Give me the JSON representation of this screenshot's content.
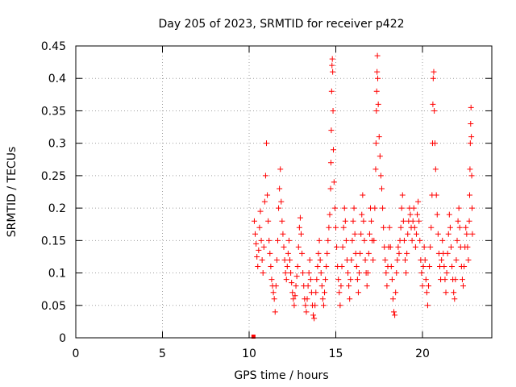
{
  "chart_data": {
    "type": "scatter",
    "title": "Day 205 of 2023, SRMTID for receiver p422",
    "xlabel": "GPS time / hours",
    "ylabel": "SRMTID / TECUs",
    "xlim": [
      0,
      24
    ],
    "ylim": [
      0,
      0.45
    ],
    "x_ticks": [
      0,
      5,
      10,
      15,
      20
    ],
    "x_tick_labels": [
      "0",
      "5",
      "10",
      "15",
      "20"
    ],
    "y_ticks": [
      0,
      0.05,
      0.1,
      0.15,
      0.2,
      0.25,
      0.3,
      0.35,
      0.4,
      0.45
    ],
    "y_tick_labels": [
      "0",
      "0.05",
      "0.1",
      "0.15",
      "0.2",
      "0.25",
      "0.3",
      "0.35",
      "0.4",
      "0.45"
    ],
    "grid": true,
    "marker": "+",
    "series_color": "#ff0000",
    "zero_marker": {
      "x": 10.25,
      "y": 0
    },
    "series": [
      {
        "name": "SRMTID",
        "points": [
          [
            10.3,
            0.18
          ],
          [
            10.35,
            0.16
          ],
          [
            10.4,
            0.145
          ],
          [
            10.45,
            0.125
          ],
          [
            10.5,
            0.11
          ],
          [
            10.55,
            0.135
          ],
          [
            10.6,
            0.17
          ],
          [
            10.65,
            0.195
          ],
          [
            10.7,
            0.15
          ],
          [
            10.75,
            0.12
          ],
          [
            10.8,
            0.1
          ],
          [
            10.85,
            0.14
          ],
          [
            10.9,
            0.21
          ],
          [
            10.95,
            0.25
          ],
          [
            11.0,
            0.3
          ],
          [
            11.05,
            0.22
          ],
          [
            11.1,
            0.18
          ],
          [
            11.15,
            0.15
          ],
          [
            11.2,
            0.13
          ],
          [
            11.25,
            0.11
          ],
          [
            11.3,
            0.09
          ],
          [
            11.35,
            0.08
          ],
          [
            11.4,
            0.07
          ],
          [
            11.45,
            0.06
          ],
          [
            11.5,
            0.04
          ],
          [
            11.55,
            0.08
          ],
          [
            11.6,
            0.12
          ],
          [
            11.65,
            0.15
          ],
          [
            11.7,
            0.2
          ],
          [
            11.75,
            0.23
          ],
          [
            11.8,
            0.26
          ],
          [
            11.85,
            0.21
          ],
          [
            11.9,
            0.18
          ],
          [
            11.95,
            0.16
          ],
          [
            12.0,
            0.14
          ],
          [
            12.05,
            0.12
          ],
          [
            12.1,
            0.1
          ],
          [
            12.15,
            0.09
          ],
          [
            12.2,
            0.11
          ],
          [
            12.25,
            0.13
          ],
          [
            12.3,
            0.15
          ],
          [
            12.35,
            0.12
          ],
          [
            12.4,
            0.1
          ],
          [
            12.45,
            0.085
          ],
          [
            12.5,
            0.07
          ],
          [
            12.55,
            0.06
          ],
          [
            12.6,
            0.05
          ],
          [
            12.65,
            0.065
          ],
          [
            12.7,
            0.08
          ],
          [
            12.75,
            0.095
          ],
          [
            12.8,
            0.11
          ],
          [
            12.85,
            0.14
          ],
          [
            12.9,
            0.17
          ],
          [
            12.95,
            0.185
          ],
          [
            13.0,
            0.16
          ],
          [
            13.05,
            0.13
          ],
          [
            13.1,
            0.1
          ],
          [
            13.15,
            0.08
          ],
          [
            13.2,
            0.06
          ],
          [
            13.25,
            0.05
          ],
          [
            13.3,
            0.04
          ],
          [
            13.35,
            0.06
          ],
          [
            13.4,
            0.08
          ],
          [
            13.45,
            0.1
          ],
          [
            13.5,
            0.12
          ],
          [
            13.55,
            0.09
          ],
          [
            13.6,
            0.07
          ],
          [
            13.65,
            0.05
          ],
          [
            13.7,
            0.035
          ],
          [
            13.75,
            0.03
          ],
          [
            13.8,
            0.05
          ],
          [
            13.85,
            0.07
          ],
          [
            13.9,
            0.09
          ],
          [
            13.95,
            0.11
          ],
          [
            14.0,
            0.13
          ],
          [
            14.05,
            0.15
          ],
          [
            14.1,
            0.12
          ],
          [
            14.15,
            0.1
          ],
          [
            14.2,
            0.08
          ],
          [
            14.25,
            0.06
          ],
          [
            14.3,
            0.05
          ],
          [
            14.35,
            0.07
          ],
          [
            14.4,
            0.09
          ],
          [
            14.45,
            0.11
          ],
          [
            14.5,
            0.13
          ],
          [
            14.55,
            0.15
          ],
          [
            14.6,
            0.17
          ],
          [
            14.65,
            0.19
          ],
          [
            14.7,
            0.23
          ],
          [
            14.72,
            0.27
          ],
          [
            14.74,
            0.32
          ],
          [
            14.76,
            0.38
          ],
          [
            14.78,
            0.42
          ],
          [
            14.8,
            0.43
          ],
          [
            14.82,
            0.41
          ],
          [
            14.84,
            0.35
          ],
          [
            14.86,
            0.29
          ],
          [
            14.9,
            0.24
          ],
          [
            14.95,
            0.2
          ],
          [
            15.0,
            0.17
          ],
          [
            15.05,
            0.14
          ],
          [
            15.1,
            0.11
          ],
          [
            15.15,
            0.09
          ],
          [
            15.2,
            0.07
          ],
          [
            15.25,
            0.05
          ],
          [
            15.3,
            0.08
          ],
          [
            15.35,
            0.11
          ],
          [
            15.4,
            0.14
          ],
          [
            15.45,
            0.17
          ],
          [
            15.5,
            0.2
          ],
          [
            15.55,
            0.18
          ],
          [
            15.6,
            0.15
          ],
          [
            15.65,
            0.12
          ],
          [
            15.7,
            0.1
          ],
          [
            15.75,
            0.08
          ],
          [
            15.8,
            0.06
          ],
          [
            15.85,
            0.09
          ],
          [
            15.9,
            0.12
          ],
          [
            15.95,
            0.15
          ],
          [
            16.0,
            0.18
          ],
          [
            16.05,
            0.2
          ],
          [
            16.1,
            0.16
          ],
          [
            16.15,
            0.13
          ],
          [
            16.2,
            0.11
          ],
          [
            16.25,
            0.09
          ],
          [
            16.3,
            0.07
          ],
          [
            16.35,
            0.1
          ],
          [
            16.4,
            0.13
          ],
          [
            16.45,
            0.16
          ],
          [
            16.5,
            0.19
          ],
          [
            16.55,
            0.22
          ],
          [
            16.6,
            0.18
          ],
          [
            16.65,
            0.15
          ],
          [
            16.7,
            0.12
          ],
          [
            16.75,
            0.1
          ],
          [
            16.8,
            0.08
          ],
          [
            16.85,
            0.1
          ],
          [
            16.9,
            0.13
          ],
          [
            16.95,
            0.16
          ],
          [
            17.0,
            0.2
          ],
          [
            17.05,
            0.18
          ],
          [
            17.1,
            0.15
          ],
          [
            17.15,
            0.12
          ],
          [
            17.2,
            0.15
          ],
          [
            17.25,
            0.2
          ],
          [
            17.3,
            0.26
          ],
          [
            17.32,
            0.3
          ],
          [
            17.34,
            0.35
          ],
          [
            17.36,
            0.38
          ],
          [
            17.38,
            0.41
          ],
          [
            17.4,
            0.435
          ],
          [
            17.42,
            0.4
          ],
          [
            17.45,
            0.36
          ],
          [
            17.5,
            0.31
          ],
          [
            17.55,
            0.28
          ],
          [
            17.6,
            0.25
          ],
          [
            17.65,
            0.23
          ],
          [
            17.7,
            0.2
          ],
          [
            17.75,
            0.17
          ],
          [
            17.8,
            0.14
          ],
          [
            17.85,
            0.12
          ],
          [
            17.9,
            0.1
          ],
          [
            17.95,
            0.08
          ],
          [
            18.0,
            0.11
          ],
          [
            18.05,
            0.14
          ],
          [
            18.1,
            0.17
          ],
          [
            18.15,
            0.14
          ],
          [
            18.2,
            0.11
          ],
          [
            18.25,
            0.09
          ],
          [
            18.3,
            0.06
          ],
          [
            18.35,
            0.04
          ],
          [
            18.4,
            0.035
          ],
          [
            18.45,
            0.07
          ],
          [
            18.5,
            0.1
          ],
          [
            18.55,
            0.12
          ],
          [
            18.6,
            0.14
          ],
          [
            18.65,
            0.13
          ],
          [
            18.7,
            0.15
          ],
          [
            18.75,
            0.17
          ],
          [
            18.8,
            0.2
          ],
          [
            18.85,
            0.22
          ],
          [
            18.9,
            0.18
          ],
          [
            18.95,
            0.15
          ],
          [
            19.0,
            0.12
          ],
          [
            19.05,
            0.1
          ],
          [
            19.1,
            0.13
          ],
          [
            19.15,
            0.16
          ],
          [
            19.2,
            0.18
          ],
          [
            19.25,
            0.2
          ],
          [
            19.3,
            0.19
          ],
          [
            19.35,
            0.17
          ],
          [
            19.4,
            0.15
          ],
          [
            19.45,
            0.18
          ],
          [
            19.5,
            0.2
          ],
          [
            19.55,
            0.17
          ],
          [
            19.6,
            0.14
          ],
          [
            19.65,
            0.16
          ],
          [
            19.7,
            0.19
          ],
          [
            19.75,
            0.21
          ],
          [
            19.8,
            0.18
          ],
          [
            19.85,
            0.15
          ],
          [
            19.9,
            0.12
          ],
          [
            19.95,
            0.1
          ],
          [
            20.0,
            0.08
          ],
          [
            20.05,
            0.11
          ],
          [
            20.1,
            0.14
          ],
          [
            20.15,
            0.12
          ],
          [
            20.2,
            0.09
          ],
          [
            20.25,
            0.07
          ],
          [
            20.3,
            0.05
          ],
          [
            20.35,
            0.08
          ],
          [
            20.4,
            0.11
          ],
          [
            20.45,
            0.14
          ],
          [
            20.5,
            0.17
          ],
          [
            20.55,
            0.22
          ],
          [
            20.58,
            0.3
          ],
          [
            20.6,
            0.36
          ],
          [
            20.62,
            0.4
          ],
          [
            20.65,
            0.41
          ],
          [
            20.68,
            0.35
          ],
          [
            20.72,
            0.3
          ],
          [
            20.76,
            0.26
          ],
          [
            20.8,
            0.22
          ],
          [
            20.85,
            0.19
          ],
          [
            20.9,
            0.16
          ],
          [
            20.95,
            0.13
          ],
          [
            21.0,
            0.11
          ],
          [
            21.05,
            0.09
          ],
          [
            21.1,
            0.12
          ],
          [
            21.15,
            0.15
          ],
          [
            21.2,
            0.13
          ],
          [
            21.25,
            0.11
          ],
          [
            21.3,
            0.09
          ],
          [
            21.35,
            0.07
          ],
          [
            21.4,
            0.1
          ],
          [
            21.45,
            0.13
          ],
          [
            21.5,
            0.16
          ],
          [
            21.55,
            0.19
          ],
          [
            21.6,
            0.17
          ],
          [
            21.65,
            0.14
          ],
          [
            21.7,
            0.11
          ],
          [
            21.75,
            0.09
          ],
          [
            21.8,
            0.07
          ],
          [
            21.85,
            0.06
          ],
          [
            21.9,
            0.09
          ],
          [
            21.95,
            0.12
          ],
          [
            22.0,
            0.15
          ],
          [
            22.05,
            0.18
          ],
          [
            22.1,
            0.2
          ],
          [
            22.15,
            0.17
          ],
          [
            22.2,
            0.14
          ],
          [
            22.25,
            0.11
          ],
          [
            22.3,
            0.09
          ],
          [
            22.35,
            0.08
          ],
          [
            22.4,
            0.11
          ],
          [
            22.45,
            0.14
          ],
          [
            22.5,
            0.17
          ],
          [
            22.55,
            0.16
          ],
          [
            22.6,
            0.14
          ],
          [
            22.65,
            0.12
          ],
          [
            22.7,
            0.18
          ],
          [
            22.72,
            0.22
          ],
          [
            22.74,
            0.26
          ],
          [
            22.76,
            0.3
          ],
          [
            22.78,
            0.33
          ],
          [
            22.8,
            0.355
          ],
          [
            22.82,
            0.31
          ],
          [
            22.84,
            0.25
          ],
          [
            22.86,
            0.2
          ],
          [
            22.88,
            0.16
          ]
        ]
      }
    ]
  }
}
